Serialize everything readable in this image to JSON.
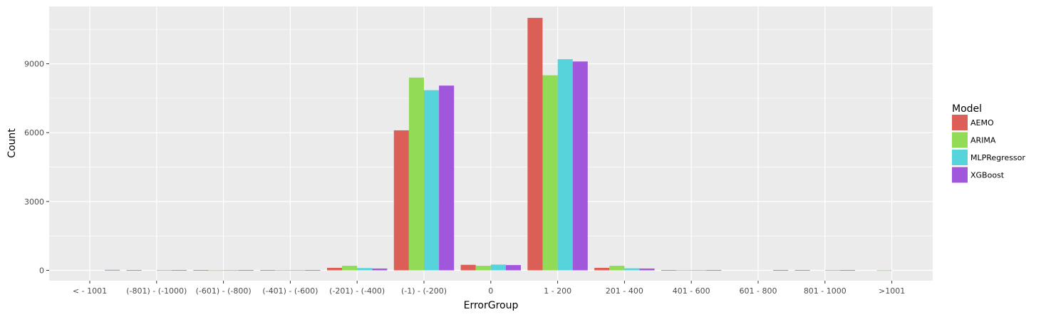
{
  "chart_data": {
    "type": "bar",
    "title": "",
    "xlabel": "ErrorGroup",
    "ylabel": "Count",
    "ylim": [
      -450,
      11500
    ],
    "yticks": [
      0,
      3000,
      6000,
      9000
    ],
    "ytick_labels": [
      "0",
      "3000",
      "6000",
      "9000"
    ],
    "grid": true,
    "legend": {
      "title": "Model",
      "placement": "right"
    },
    "categories": [
      "< - 1001",
      "(-801) - (-1000)",
      "(-601) - (-800)",
      "(-401) - (-600)",
      "(-201) - (-400)",
      "(-1) - (-200)",
      "0",
      "1 - 200",
      "201 - 400",
      "401 - 600",
      "601 - 800",
      "801 - 1000",
      ">1001"
    ],
    "series": [
      {
        "name": "AEMO",
        "color": "#db5f57",
        "values": [
          0,
          10,
          10,
          10,
          110,
          6100,
          240,
          11000,
          110,
          15,
          0,
          10,
          0
        ]
      },
      {
        "name": "ARIMA",
        "color": "#91db57",
        "values": [
          0,
          0,
          5,
          10,
          200,
          8400,
          200,
          8500,
          200,
          15,
          0,
          0,
          5
        ]
      },
      {
        "name": "MLPRegressor",
        "color": "#57d3db",
        "values": [
          0,
          10,
          10,
          10,
          100,
          7850,
          250,
          9200,
          90,
          10,
          0,
          10,
          0
        ]
      },
      {
        "name": "XGBoost",
        "color": "#a157db",
        "values": [
          20,
          10,
          10,
          10,
          80,
          8050,
          230,
          9100,
          80,
          10,
          10,
          10,
          0
        ]
      }
    ]
  }
}
